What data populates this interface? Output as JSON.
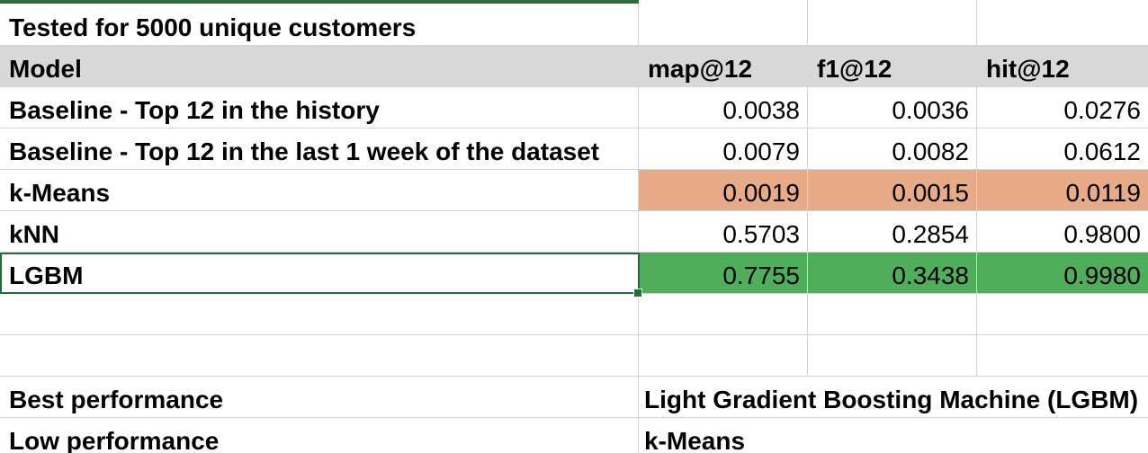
{
  "title": "Tested for 5000 unique customers",
  "header": {
    "model": "Model",
    "map": "map@12",
    "f1": "f1@12",
    "hit": "hit@12"
  },
  "rows": [
    {
      "model": "Baseline - Top 12 in the history",
      "map": "0.0038",
      "f1": "0.0036",
      "hit": "0.0276"
    },
    {
      "model": "Baseline - Top 12 in the last 1 week of the dataset",
      "map": "0.0079",
      "f1": "0.0082",
      "hit": "0.0612"
    },
    {
      "model": "k-Means",
      "map": "0.0019",
      "f1": "0.0015",
      "hit": "0.0119"
    },
    {
      "model": "kNN",
      "map": "0.5703",
      "f1": "0.2854",
      "hit": "0.9800"
    },
    {
      "model": "LGBM",
      "map": "0.7755",
      "f1": "0.3438",
      "hit": "0.9980"
    }
  ],
  "summary": {
    "best_label": "Best performance",
    "best_value": "Light Gradient Boosting Machine (LGBM)",
    "low_label": "Low performance",
    "low_value": "k-Means"
  },
  "colors": {
    "header_bg": "#d9d9d9",
    "low_highlight": "#e8ab8a",
    "best_highlight": "#4fad5b",
    "selection": "#1e6e38"
  }
}
